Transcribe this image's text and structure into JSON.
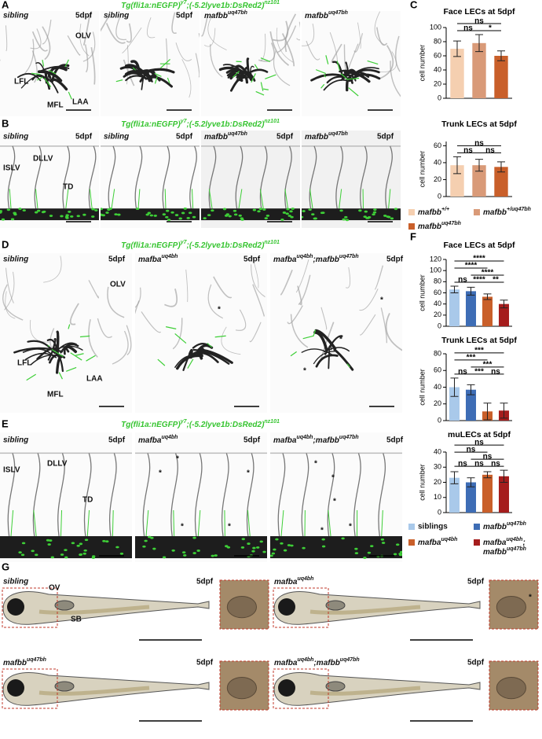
{
  "figure": {
    "letters": [
      "A",
      "B",
      "C",
      "D",
      "E",
      "F",
      "G"
    ],
    "transgene": {
      "base": "Tg(fli1a:nEGFP)",
      "sup": "y7",
      "base2": ";(-5.2lyve1b:DsRed2)",
      "sup2": "nz101"
    },
    "stage": "5dpf",
    "sibling": "sibling",
    "mafbb": {
      "gene": "mafbb",
      "allele": "uq47bh"
    },
    "mafba": {
      "gene": "mafba",
      "allele": "uq4bh"
    },
    "double": {
      "gene": "mafba",
      "allele": "uq4bh",
      "sep": ";",
      "gene2": "mafbb",
      "allele2": "uq47bh"
    },
    "labels": {
      "OLV": "OLV",
      "LFL": "LFL",
      "MFL": "MFL",
      "LAA": "LAA",
      "ISLV": "ISLV",
      "DLLV": "DLLV",
      "TD": "TD",
      "OV": "OV",
      "SB": "SB",
      "star": "*"
    }
  },
  "charts": [
    {
      "type": "bar",
      "title": "Face LECs at 5dpf",
      "ylabel": "cell number",
      "values": [
        70,
        78,
        60
      ],
      "errors": [
        11,
        12,
        7
      ],
      "colors": [
        "#f5cfb0",
        "#d99a78",
        "#c95f2a"
      ],
      "ylim": [
        0,
        100
      ],
      "yticks": [
        0,
        20,
        40,
        60,
        80,
        100
      ],
      "significance": [
        {
          "label": "ns",
          "from": 0,
          "to": 2
        },
        {
          "label": "ns",
          "from": 0,
          "to": 1
        },
        {
          "label": "*",
          "from": 1,
          "to": 2
        }
      ]
    },
    {
      "type": "bar",
      "title": "Trunk LECs at 5dpf",
      "ylabel": "cell number",
      "values": [
        37,
        37,
        35
      ],
      "errors": [
        10,
        7,
        6
      ],
      "colors": [
        "#f5cfb0",
        "#d99a78",
        "#c95f2a"
      ],
      "ylim": [
        0,
        65
      ],
      "yticks": [
        0,
        20,
        40,
        60
      ],
      "significance": [
        {
          "label": "ns",
          "from": 0,
          "to": 2
        },
        {
          "label": "ns",
          "from": 0,
          "to": 1
        },
        {
          "label": "ns",
          "from": 1,
          "to": 2
        }
      ]
    },
    {
      "type": "bar",
      "title": "Face LECs at 5dpf",
      "ylabel": "cell number",
      "values": [
        66,
        63,
        53,
        40
      ],
      "errors": [
        6,
        7,
        5,
        7
      ],
      "colors": [
        "#a9c9ea",
        "#3e6db5",
        "#c95f2a",
        "#a51d1d"
      ],
      "ylim": [
        0,
        120
      ],
      "yticks": [
        0,
        20,
        40,
        60,
        80,
        100,
        120
      ],
      "significance": [
        {
          "label": "****",
          "from": 0,
          "to": 3
        },
        {
          "label": "****",
          "from": 0,
          "to": 2
        },
        {
          "label": "ns",
          "from": 0,
          "to": 1
        },
        {
          "label": "****",
          "from": 1,
          "to": 3
        },
        {
          "label": "****",
          "from": 1,
          "to": 2
        },
        {
          "label": "**",
          "from": 2,
          "to": 3
        }
      ]
    },
    {
      "type": "bar",
      "title": "Trunk LECs at 5dpf",
      "ylabel": "cell number",
      "values": [
        40,
        37,
        11,
        12
      ],
      "errors": [
        11,
        6,
        10,
        9
      ],
      "colors": [
        "#a9c9ea",
        "#3e6db5",
        "#c95f2a",
        "#a51d1d"
      ],
      "ylim": [
        0,
        80
      ],
      "yticks": [
        0,
        20,
        40,
        60,
        80
      ],
      "significance": [
        {
          "label": "***",
          "from": 0,
          "to": 3
        },
        {
          "label": "***",
          "from": 0,
          "to": 2
        },
        {
          "label": "ns",
          "from": 0,
          "to": 1
        },
        {
          "label": "***",
          "from": 1,
          "to": 3
        },
        {
          "label": "***",
          "from": 1,
          "to": 2
        },
        {
          "label": "ns",
          "from": 2,
          "to": 3
        }
      ]
    },
    {
      "type": "bar",
      "title": "muLECs at 5dpf",
      "ylabel": "cell number",
      "values": [
        23,
        20,
        25,
        24
      ],
      "errors": [
        4,
        3,
        2,
        4
      ],
      "colors": [
        "#a9c9ea",
        "#3e6db5",
        "#c95f2a",
        "#a51d1d"
      ],
      "ylim": [
        0,
        40
      ],
      "yticks": [
        0,
        10,
        20,
        30,
        40
      ],
      "significance": [
        {
          "label": "ns",
          "from": 0,
          "to": 3
        },
        {
          "label": "ns",
          "from": 0,
          "to": 2
        },
        {
          "label": "ns",
          "from": 0,
          "to": 1
        },
        {
          "label": "ns",
          "from": 1,
          "to": 3
        },
        {
          "label": "ns",
          "from": 1,
          "to": 2
        },
        {
          "label": "ns",
          "from": 2,
          "to": 3
        }
      ]
    }
  ],
  "legend_c": [
    {
      "gene": "mafbb",
      "allele": "+/+",
      "color": "#f5cfb0"
    },
    {
      "gene": "mafbb",
      "allele": "+/uq47bh",
      "color": "#d99a78"
    },
    {
      "gene": "mafbb",
      "allele": "uq47bh",
      "color": "#c95f2a"
    }
  ],
  "legend_f": [
    {
      "name": "siblings",
      "color": "#a9c9ea"
    },
    {
      "gene": "mafbb",
      "allele": "uq47bh",
      "color": "#3e6db5"
    },
    {
      "gene": "mafba",
      "allele": "uq4bh",
      "color": "#c95f2a"
    },
    {
      "gene": "mafba",
      "allele": "uq4bh",
      "sep": ";",
      "gene2": "mafbb",
      "allele2": "uq47bh",
      "color": "#a51d1d"
    }
  ]
}
